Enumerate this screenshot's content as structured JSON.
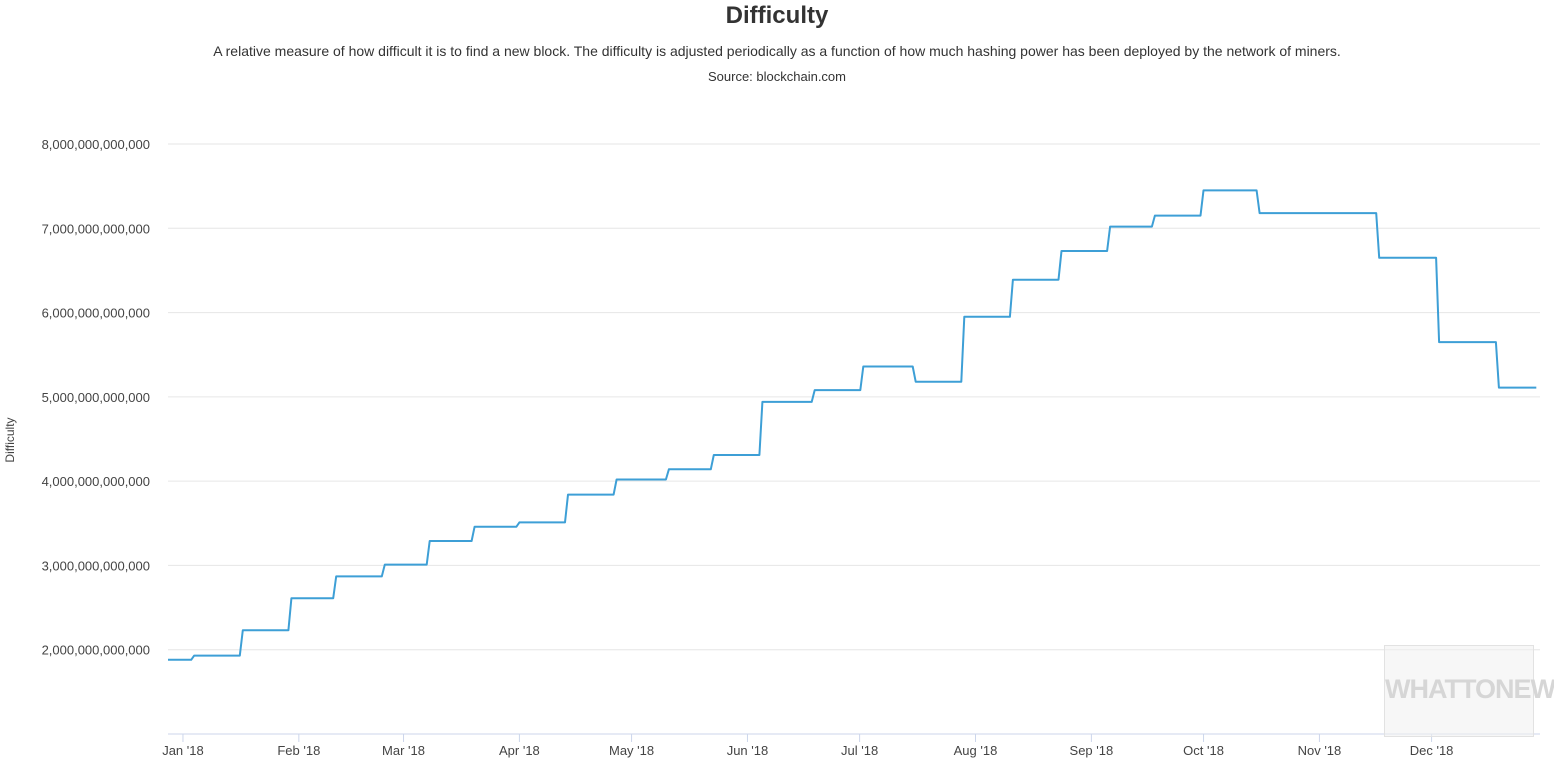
{
  "title": "Difficulty",
  "subtitle": "A relative measure of how difficult it is to find a new block. The difficulty is adjusted periodically as a function of how much hashing power has been deployed by the network of miners.",
  "source": "Source: blockchain.com",
  "watermark": "WHATTONEWS",
  "colors": {
    "line": "#3d9fd6",
    "grid": "#e6e6e6",
    "axis": "#ccd6eb"
  },
  "chart_data": {
    "type": "line",
    "title": "Difficulty",
    "ylabel": "Difficulty",
    "xlabel": "",
    "ylim": [
      1000000000000,
      8000000000000
    ],
    "grid": true,
    "xlim": [
      "2017-12-28",
      "2018-12-30"
    ],
    "y_ticks": [
      2000000000000,
      3000000000000,
      4000000000000,
      5000000000000,
      6000000000000,
      7000000000000,
      8000000000000
    ],
    "y_tick_labels": [
      "2,000,000,000,000",
      "3,000,000,000,000",
      "4,000,000,000,000",
      "5,000,000,000,000",
      "6,000,000,000,000",
      "7,000,000,000,000",
      "8,000,000,000,000"
    ],
    "x_ticks": [
      "2018-01-01",
      "2018-02-01",
      "2018-03-01",
      "2018-04-01",
      "2018-05-01",
      "2018-06-01",
      "2018-07-01",
      "2018-08-01",
      "2018-09-01",
      "2018-10-01",
      "2018-11-01",
      "2018-12-01"
    ],
    "x_tick_labels": [
      "Jan '18",
      "Feb '18",
      "Mar '18",
      "Apr '18",
      "May '18",
      "Jun '18",
      "Jul '18",
      "Aug '18",
      "Sep '18",
      "Oct '18",
      "Nov '18",
      "Dec '18"
    ],
    "series": [
      {
        "steps": [
          [
            "2017-12-28",
            1880000000000
          ],
          [
            "2018-01-04",
            1930000000000
          ],
          [
            "2018-01-17",
            2230000000000
          ],
          [
            "2018-01-30",
            2610000000000
          ],
          [
            "2018-02-11",
            2870000000000
          ],
          [
            "2018-02-24",
            3010000000000
          ],
          [
            "2018-03-08",
            3290000000000
          ],
          [
            "2018-03-20",
            3460000000000
          ],
          [
            "2018-04-01",
            3510000000000
          ],
          [
            "2018-04-14",
            3840000000000
          ],
          [
            "2018-04-27",
            4020000000000
          ],
          [
            "2018-05-11",
            4140000000000
          ],
          [
            "2018-05-23",
            4310000000000
          ],
          [
            "2018-06-05",
            4940000000000
          ],
          [
            "2018-06-19",
            5080000000000
          ],
          [
            "2018-07-02",
            5360000000000
          ],
          [
            "2018-07-16",
            5180000000000
          ],
          [
            "2018-07-29",
            5950000000000
          ],
          [
            "2018-08-11",
            6390000000000
          ],
          [
            "2018-08-24",
            6730000000000
          ],
          [
            "2018-09-06",
            7020000000000
          ],
          [
            "2018-09-18",
            7150000000000
          ],
          [
            "2018-10-01",
            7450000000000
          ],
          [
            "2018-10-16",
            7180000000000
          ],
          [
            "2018-11-08",
            7180000000000
          ],
          [
            "2018-11-17",
            6650000000000
          ],
          [
            "2018-12-03",
            5650000000000
          ],
          [
            "2018-12-19",
            5110000000000
          ]
        ],
        "end": "2018-12-29"
      }
    ]
  }
}
